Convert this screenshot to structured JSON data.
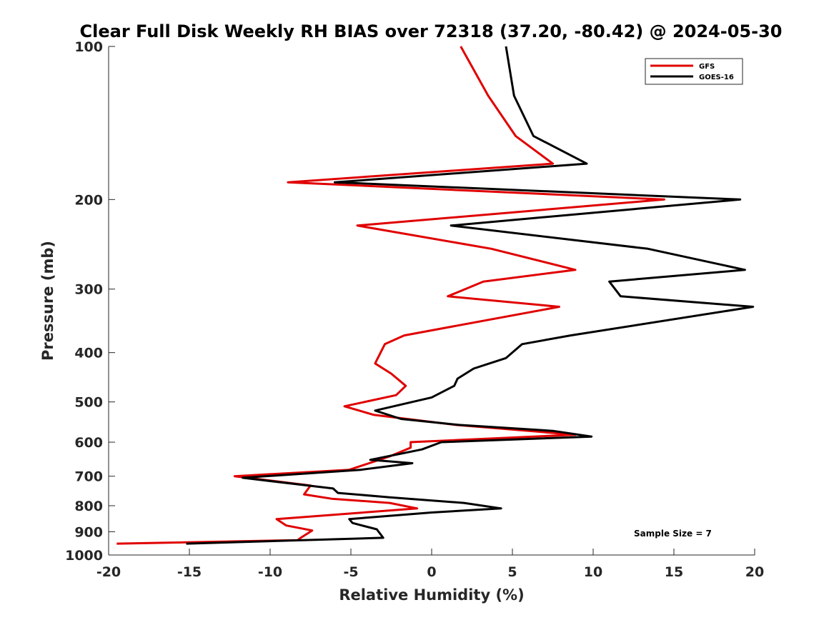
{
  "chart_data": {
    "type": "line",
    "title": "Clear Full Disk Weekly RH BIAS over 72318 (37.20, -80.42) @ 2024-05-30",
    "xlabel": "Relative Humidity (%)",
    "ylabel": "Pressure (mb)",
    "xlim": [
      -20,
      20
    ],
    "ylim": [
      100,
      1000
    ],
    "yscale": "log",
    "yreversed": true,
    "grid": false,
    "legend_position": "top-right",
    "x_ticks": [
      "-20",
      "-15",
      "-10",
      "-5",
      "0",
      "5",
      "10",
      "15",
      "20"
    ],
    "y_ticks": [
      "100",
      "200",
      "300",
      "400",
      "500",
      "600",
      "700",
      "800",
      "900",
      "1000"
    ],
    "annotation": "Sample Size = 7",
    "series": [
      {
        "name": "GFS",
        "color": "#e00000",
        "points": [
          [
            1.8,
            100
          ],
          [
            3.5,
            125
          ],
          [
            5.2,
            150
          ],
          [
            7.5,
            170
          ],
          [
            -8.9,
            185
          ],
          [
            14.4,
            200
          ],
          [
            -4.6,
            225
          ],
          [
            3.7,
            250
          ],
          [
            8.9,
            275
          ],
          [
            3.2,
            290
          ],
          [
            1.0,
            310
          ],
          [
            7.9,
            325
          ],
          [
            -1.7,
            370
          ],
          [
            -2.9,
            385
          ],
          [
            -3.5,
            420
          ],
          [
            -2.5,
            440
          ],
          [
            -1.6,
            465
          ],
          [
            -2.2,
            485
          ],
          [
            -5.4,
            510
          ],
          [
            -3.6,
            530
          ],
          [
            1.5,
            555
          ],
          [
            8.9,
            580
          ],
          [
            -1.3,
            600
          ],
          [
            -1.3,
            615
          ],
          [
            -2.6,
            640
          ],
          [
            -5.1,
            680
          ],
          [
            -12.2,
            700
          ],
          [
            -7.5,
            730
          ],
          [
            -7.9,
            760
          ],
          [
            -6.2,
            775
          ],
          [
            -2.6,
            790
          ],
          [
            -0.9,
            810
          ],
          [
            -9.6,
            850
          ],
          [
            -9.0,
            875
          ],
          [
            -7.4,
            895
          ],
          [
            -8.1,
            925
          ],
          [
            -8.3,
            935
          ],
          [
            -19.5,
            950
          ]
        ]
      },
      {
        "name": "GOES-16",
        "color": "#000000",
        "points": [
          [
            4.6,
            100
          ],
          [
            5.1,
            125
          ],
          [
            6.3,
            150
          ],
          [
            9.6,
            170
          ],
          [
            -6.0,
            185
          ],
          [
            19.1,
            200
          ],
          [
            1.2,
            225
          ],
          [
            13.4,
            250
          ],
          [
            19.4,
            275
          ],
          [
            11.0,
            290
          ],
          [
            11.7,
            310
          ],
          [
            19.9,
            325
          ],
          [
            8.6,
            370
          ],
          [
            5.6,
            385
          ],
          [
            4.6,
            410
          ],
          [
            2.6,
            430
          ],
          [
            1.6,
            450
          ],
          [
            1.4,
            465
          ],
          [
            0.0,
            490
          ],
          [
            -3.5,
            520
          ],
          [
            -1.9,
            540
          ],
          [
            1.7,
            555
          ],
          [
            7.5,
            570
          ],
          [
            9.9,
            585
          ],
          [
            0.6,
            600
          ],
          [
            -0.6,
            620
          ],
          [
            -3.8,
            650
          ],
          [
            -1.2,
            660
          ],
          [
            -4.4,
            680
          ],
          [
            -11.7,
            705
          ],
          [
            -6.1,
            740
          ],
          [
            -5.8,
            755
          ],
          [
            -2.6,
            770
          ],
          [
            2.0,
            790
          ],
          [
            4.3,
            810
          ],
          [
            0.0,
            825
          ],
          [
            -5.1,
            850
          ],
          [
            -4.9,
            865
          ],
          [
            -3.4,
            890
          ],
          [
            -3.0,
            925
          ],
          [
            -15.2,
            950
          ]
        ]
      }
    ]
  }
}
